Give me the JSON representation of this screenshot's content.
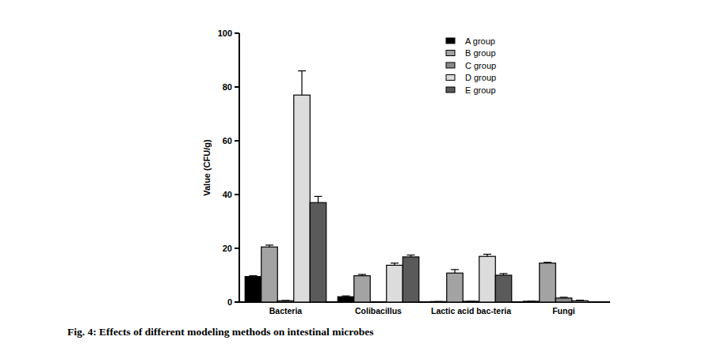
{
  "chart_data": {
    "type": "bar",
    "title": "Fig. 4: Effects of different modeling methods on intestinal microbes",
    "y_label": "Value (CFU/g)",
    "categories": [
      "Bacteria",
      "Colibacillus",
      "Lactic acid bac-teria",
      "Fungi"
    ],
    "series": [
      {
        "name": "A group",
        "color": "#000000",
        "values": [
          9.5,
          2,
          0.2,
          0.3
        ],
        "errors": [
          0.3,
          0.3,
          0,
          0
        ]
      },
      {
        "name": "B group",
        "color": "#a3a3a3",
        "values": [
          20.5,
          9.8,
          10.8,
          14.5
        ],
        "errors": [
          0.7,
          0.5,
          1.3,
          0.3
        ]
      },
      {
        "name": "C group",
        "color": "#8a8a8a",
        "values": [
          0.5,
          0,
          0.3,
          1.5
        ],
        "errors": [
          0.1,
          0,
          0,
          0.3
        ]
      },
      {
        "name": "D group",
        "color": "#dcdcdc",
        "values": [
          77,
          13.7,
          17,
          0.5
        ],
        "errors": [
          9,
          0.8,
          0.8,
          0.2
        ]
      },
      {
        "name": "E group",
        "color": "#5a5a5a",
        "values": [
          37,
          16.8,
          10,
          0
        ],
        "errors": [
          2.3,
          0.7,
          0.6,
          0
        ]
      }
    ],
    "ylim": [
      0,
      100
    ],
    "yticks": [
      0,
      20,
      40,
      60,
      80,
      100
    ],
    "grid": false,
    "legend": "top-right"
  }
}
